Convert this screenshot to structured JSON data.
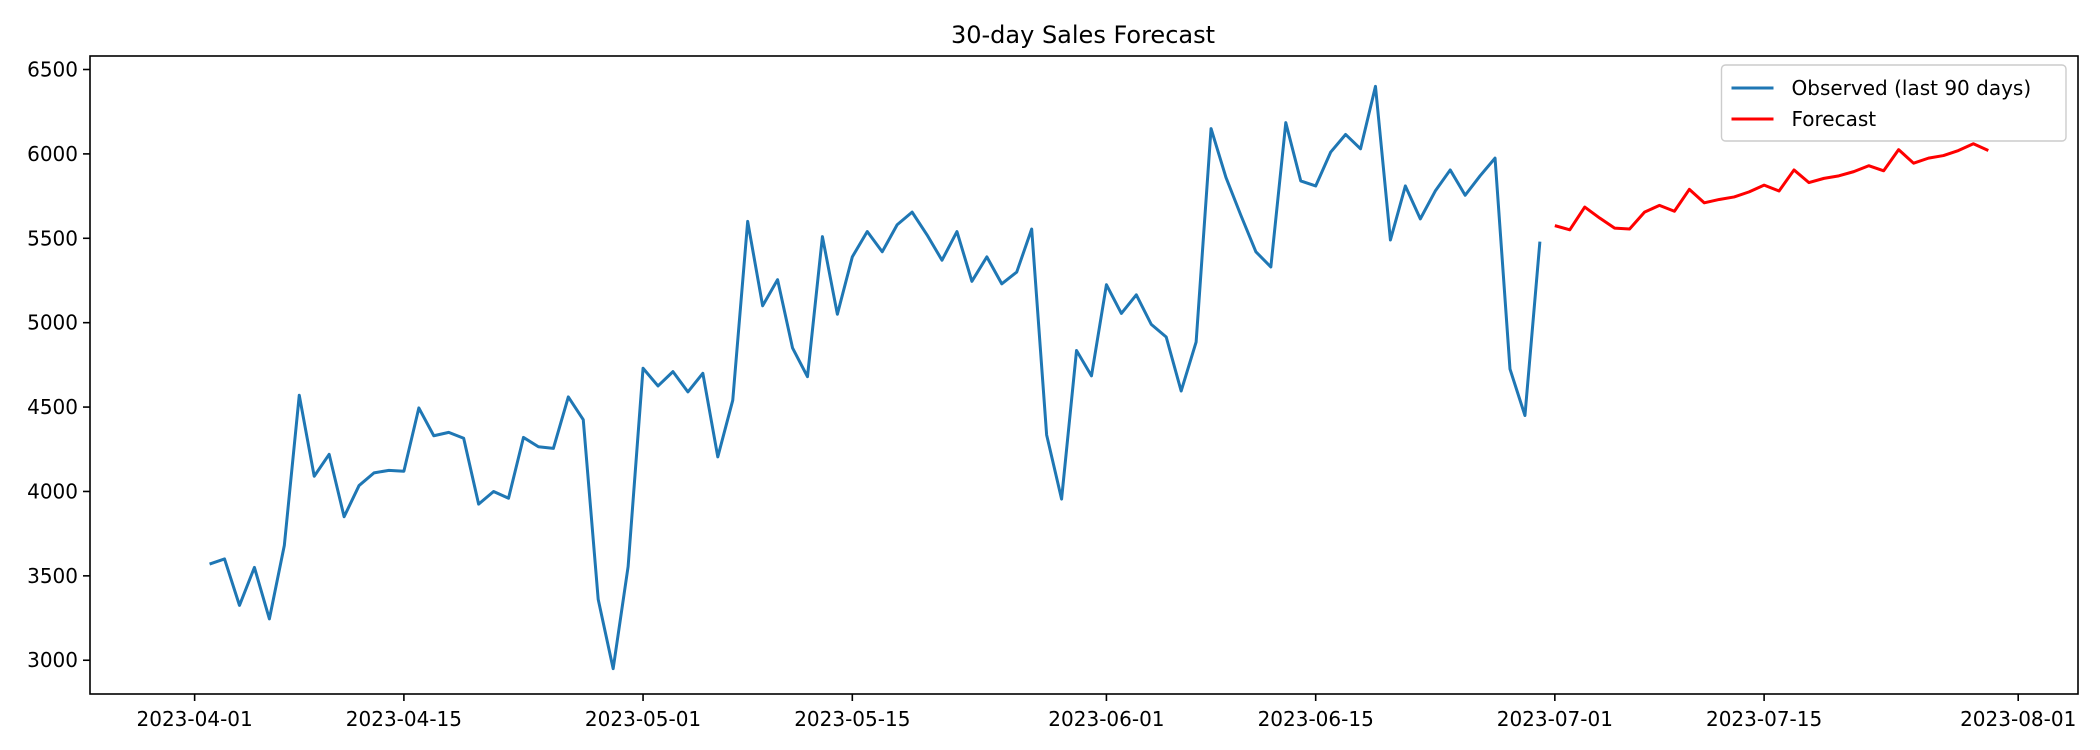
{
  "chart_data": {
    "type": "line",
    "title": "30-day Sales Forecast",
    "xlabel": "",
    "ylabel": "",
    "xlim": [
      "2023-03-25",
      "2023-08-05"
    ],
    "ylim": [
      2800,
      6580
    ],
    "x_ticks": [
      "2023-04-01",
      "2023-04-15",
      "2023-05-01",
      "2023-05-15",
      "2023-06-01",
      "2023-06-15",
      "2023-07-01",
      "2023-07-15",
      "2023-08-01"
    ],
    "y_ticks": [
      3000,
      3500,
      4000,
      4500,
      5000,
      5500,
      6000,
      6500
    ],
    "grid": false,
    "legend": {
      "position": "top-right",
      "entries": [
        "Observed (last 90 days)",
        "Forecast"
      ]
    },
    "series": [
      {
        "name": "Observed (last 90 days)",
        "color": "#1f77b4",
        "start_date": "2023-04-02",
        "values": [
          3570,
          3600,
          3325,
          3550,
          3245,
          3680,
          4570,
          4090,
          4220,
          3850,
          4035,
          4110,
          4125,
          4120,
          4495,
          4330,
          4350,
          4315,
          3925,
          4000,
          3960,
          4320,
          4265,
          4255,
          4560,
          4425,
          3360,
          2950,
          3555,
          4730,
          4625,
          4710,
          4590,
          4700,
          4205,
          4540,
          5600,
          5100,
          5255,
          4850,
          4680,
          5510,
          5050,
          5390,
          5540,
          5420,
          5580,
          5655,
          5520,
          5370,
          5540,
          5245,
          5390,
          5230,
          5300,
          5555,
          4335,
          3955,
          4835,
          4685,
          5225,
          5055,
          5165,
          4990,
          4915,
          4595,
          4885,
          6150,
          5860,
          5635,
          5420,
          5330,
          6185,
          5840,
          5810,
          6010,
          6115,
          6030,
          6400,
          5490,
          5810,
          5615,
          5780,
          5905,
          5755,
          5870,
          5975,
          4725,
          4450,
          5480
        ]
      },
      {
        "name": "Forecast",
        "color": "#ff0000",
        "start_date": "2023-07-01",
        "values": [
          5575,
          5550,
          5685,
          5620,
          5560,
          5555,
          5655,
          5695,
          5660,
          5790,
          5710,
          5730,
          5745,
          5775,
          5815,
          5780,
          5905,
          5830,
          5855,
          5870,
          5895,
          5930,
          5900,
          6025,
          5945,
          5975,
          5990,
          6020,
          6060,
          6020
        ]
      }
    ]
  }
}
